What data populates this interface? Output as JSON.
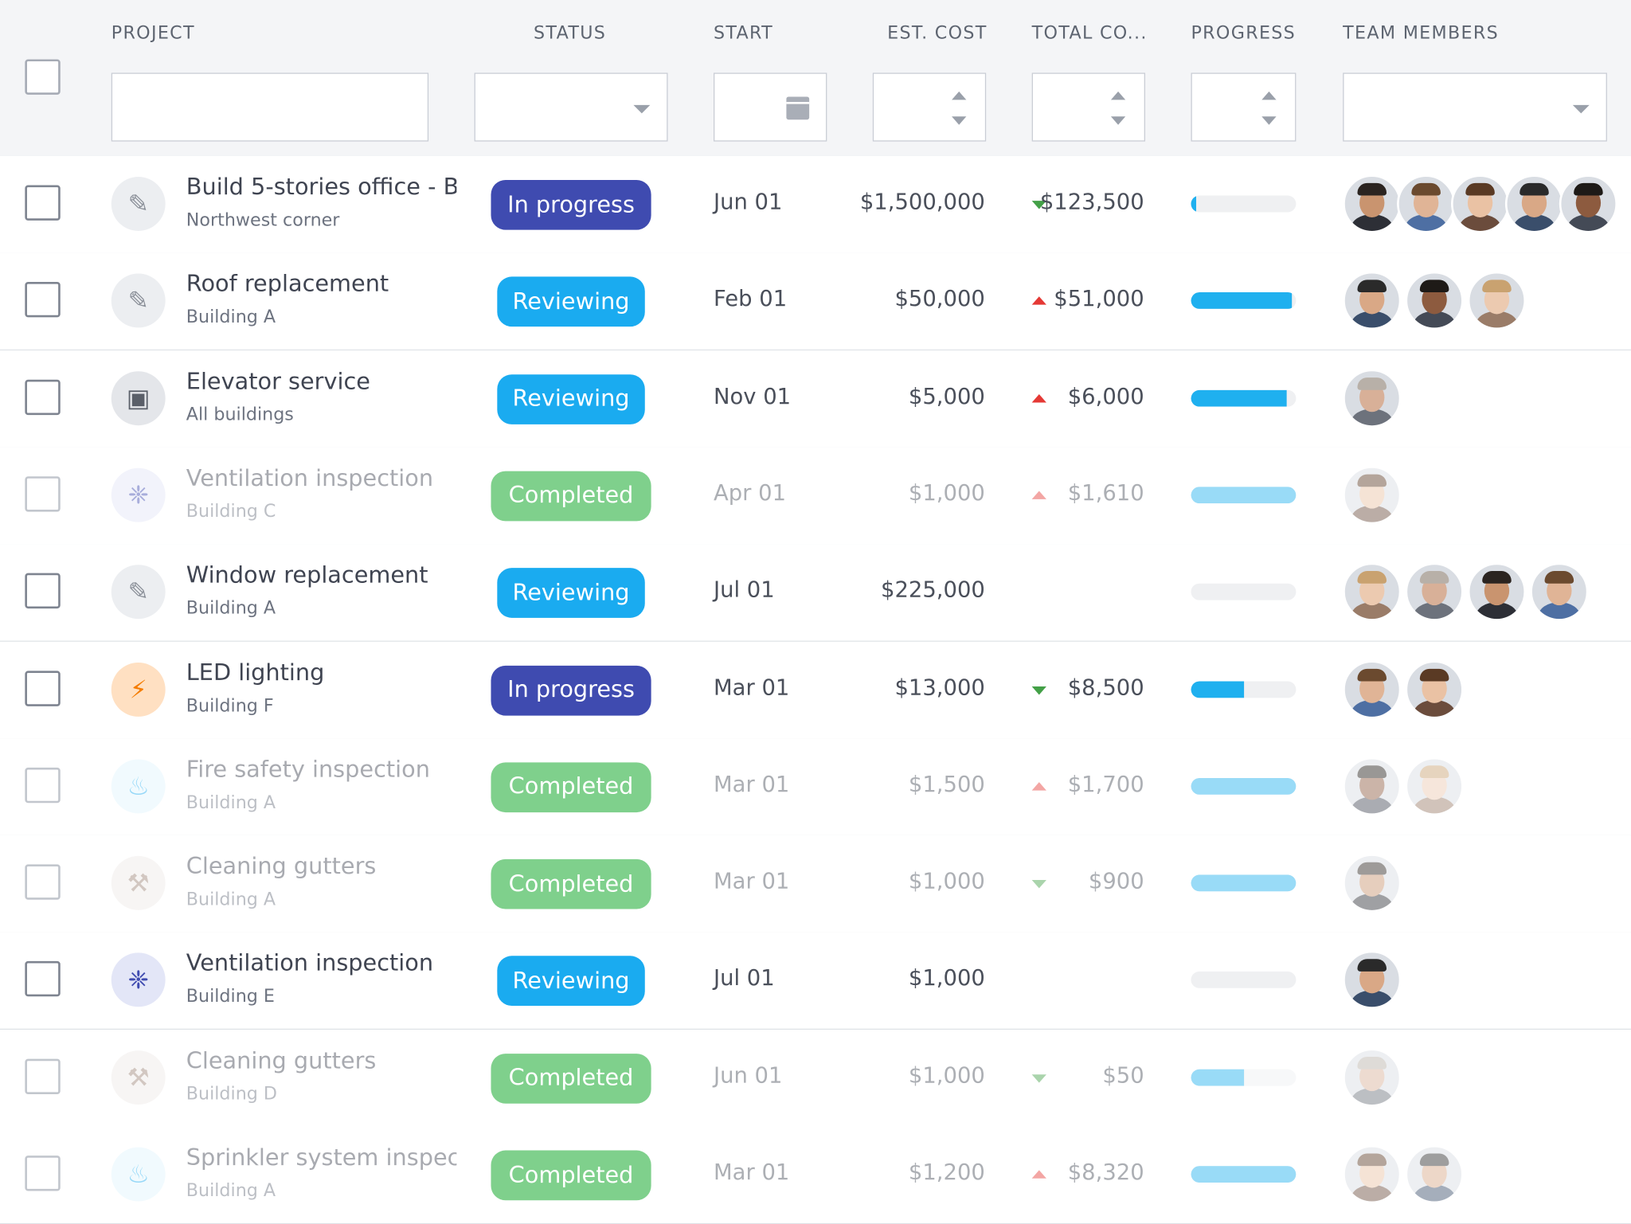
{
  "header": {
    "columns": [
      "PROJECT",
      "STATUS",
      "START",
      "EST. COST",
      "TOTAL CO...",
      "PROGRESS",
      "TEAM MEMBERS"
    ]
  },
  "colors": {
    "in_progress": "#3f4bb0",
    "reviewing": "#1aabf0",
    "completed": "#7fd08c",
    "progress_fill": "#1fb0ef",
    "up": "#e53935",
    "down": "#43a047"
  },
  "rows": [
    {
      "name": "Build 5-stories office - B",
      "sub": "Northwest corner",
      "icon": "pencil-ruler-icon",
      "status": "In progress",
      "start": "Jun 01",
      "est": "$1,500,000",
      "trend": "down",
      "total": "$123,500",
      "progress": 0.05,
      "team": 5,
      "dim": false
    },
    {
      "name": "Roof replacement",
      "sub": "Building A",
      "icon": "pencil-ruler-icon",
      "status": "Reviewing",
      "start": "Feb 01",
      "est": "$50,000",
      "trend": "up",
      "total": "$51,000",
      "progress": 0.96,
      "team": 3,
      "dim": false
    },
    {
      "name": "Elevator service",
      "sub": "All buildings",
      "icon": "elevator-icon",
      "status": "Reviewing",
      "start": "Nov 01",
      "est": "$5,000",
      "trend": "up",
      "total": "$6,000",
      "progress": 0.91,
      "team": 1,
      "dim": false
    },
    {
      "name": "Ventilation inspection",
      "sub": "Building C",
      "icon": "fan-icon",
      "status": "Completed",
      "start": "Apr 01",
      "est": "$1,000",
      "trend": "up",
      "total": "$1,610",
      "progress": 1.0,
      "team": 1,
      "dim": true
    },
    {
      "name": "Window replacement",
      "sub": "Building A",
      "icon": "pencil-ruler-icon",
      "status": "Reviewing",
      "start": "Jul 01",
      "est": "$225,000",
      "trend": "",
      "total": "",
      "progress": 0.0,
      "team": 4,
      "dim": false
    },
    {
      "name": "LED lighting",
      "sub": "Building F",
      "icon": "lightning-icon",
      "status": "In progress",
      "start": "Mar 01",
      "est": "$13,000",
      "trend": "down",
      "total": "$8,500",
      "progress": 0.5,
      "team": 2,
      "dim": false
    },
    {
      "name": "Fire safety inspection",
      "sub": "Building A",
      "icon": "fire-icon",
      "status": "Completed",
      "start": "Mar 01",
      "est": "$1,500",
      "trend": "up",
      "total": "$1,700",
      "progress": 1.0,
      "team": 2,
      "dim": true
    },
    {
      "name": "Cleaning gutters",
      "sub": "Building A",
      "icon": "broom-icon",
      "status": "Completed",
      "start": "Mar 01",
      "est": "$1,000",
      "trend": "down",
      "total": "$900",
      "progress": 1.0,
      "team": 1,
      "dim": true
    },
    {
      "name": "Ventilation inspection",
      "sub": "Building E",
      "icon": "fan-icon",
      "status": "Reviewing",
      "start": "Jul 01",
      "est": "$1,000",
      "trend": "",
      "total": "",
      "progress": 0.0,
      "team": 1,
      "dim": false
    },
    {
      "name": "Cleaning gutters",
      "sub": "Building D",
      "icon": "broom-icon",
      "status": "Completed",
      "start": "Jun 01",
      "est": "$1,000",
      "trend": "down",
      "total": "$50",
      "progress": 0.5,
      "team": 1,
      "dim": true
    },
    {
      "name": "Sprinkler system inspect",
      "sub": "Building A",
      "icon": "fire-icon",
      "status": "Completed",
      "start": "Mar 01",
      "est": "$1,200",
      "trend": "up",
      "total": "$8,320",
      "progress": 1.0,
      "team": 2,
      "dim": true
    }
  ]
}
